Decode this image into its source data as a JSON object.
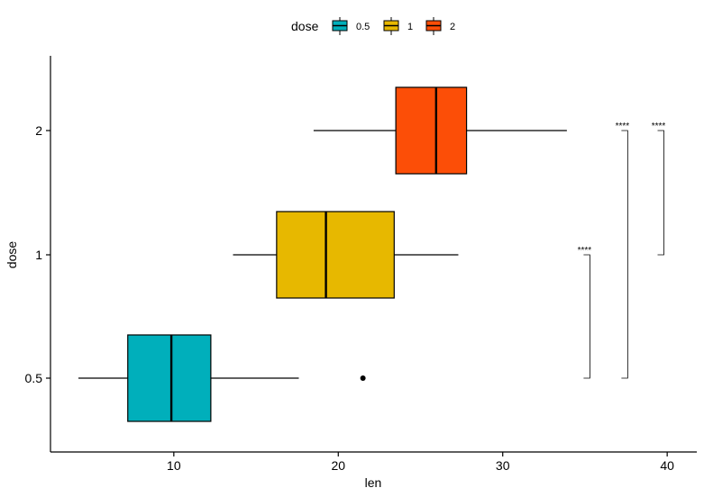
{
  "chart_data": {
    "type": "boxplot",
    "orientation": "horizontal",
    "xlabel": "len",
    "ylabel": "dose",
    "xlim": [
      2.5,
      41.8
    ],
    "xticks": [
      10,
      20,
      30,
      40
    ],
    "categories": [
      "0.5",
      "1",
      "2"
    ],
    "legend": {
      "title": "dose",
      "position": "top",
      "entries": [
        "0.5",
        "1",
        "2"
      ]
    },
    "colors": {
      "0.5": "#00AFBB",
      "1": "#E7B800",
      "2": "#FC4E07"
    },
    "boxes": [
      {
        "category": "0.5",
        "min": 4.2,
        "q1": 7.2,
        "median": 9.85,
        "q3": 12.25,
        "max": 17.6,
        "outliers": [
          21.5
        ]
      },
      {
        "category": "1",
        "min": 13.6,
        "q1": 16.25,
        "median": 19.25,
        "q3": 23.4,
        "max": 27.3,
        "outliers": []
      },
      {
        "category": "2",
        "min": 18.5,
        "q1": 23.5,
        "median": 25.95,
        "q3": 27.8,
        "max": 33.9,
        "outliers": []
      }
    ],
    "comparisons": [
      {
        "from": "0.5",
        "to": "1",
        "label": "****",
        "x": 35.3
      },
      {
        "from": "0.5",
        "to": "2",
        "label": "****",
        "x": 37.6
      },
      {
        "from": "1",
        "to": "2",
        "label": "****",
        "x": 39.8
      }
    ],
    "grid": false
  }
}
